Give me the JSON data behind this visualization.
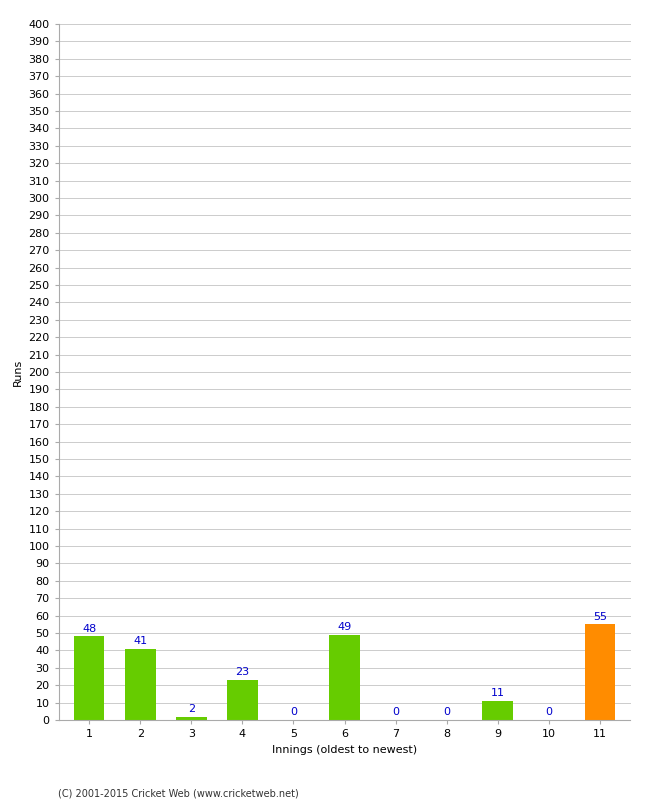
{
  "title": "",
  "xlabel": "Innings (oldest to newest)",
  "ylabel": "Runs",
  "categories": [
    "1",
    "2",
    "3",
    "4",
    "5",
    "6",
    "7",
    "8",
    "9",
    "10",
    "11"
  ],
  "values": [
    48,
    41,
    2,
    23,
    0,
    49,
    0,
    0,
    11,
    0,
    55
  ],
  "bar_colors": [
    "#66cc00",
    "#66cc00",
    "#66cc00",
    "#66cc00",
    "#66cc00",
    "#66cc00",
    "#66cc00",
    "#66cc00",
    "#66cc00",
    "#66cc00",
    "#ff8c00"
  ],
  "label_color": "#0000cc",
  "ylim": [
    0,
    400
  ],
  "ytick_step": 10,
  "grid_color": "#cccccc",
  "background_color": "#ffffff",
  "footer": "(C) 2001-2015 Cricket Web (www.cricketweb.net)",
  "label_fontsize": 8,
  "axis_fontsize": 8,
  "tick_fontsize": 8
}
